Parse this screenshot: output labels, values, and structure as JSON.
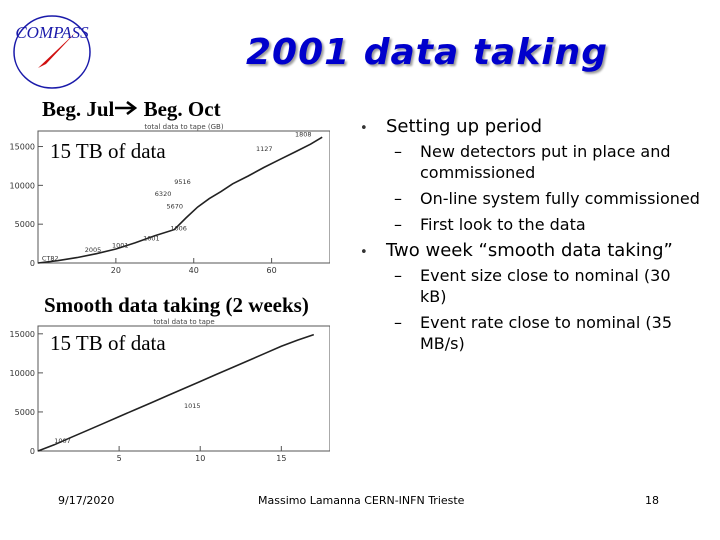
{
  "slide": {
    "title": "2001 data taking",
    "logo_text": "COMPASS",
    "label_period_from": "Beg. Jul",
    "label_period_to": " Beg. Oct",
    "label_smooth": "Smooth data taking (2 weeks)",
    "tb_label_1": "15 TB of data",
    "tb_label_2": "15 TB of data"
  },
  "bullets": [
    {
      "text": "Setting up period",
      "sub": [
        "New detectors put in place and commissioned",
        "On-line system fully commissioned",
        "First look to the data"
      ]
    },
    {
      "text": "Two week “smooth data taking”",
      "sub": [
        "Event size close to nominal (30 kB)",
        "Event rate close to nominal (35 MB/s)"
      ]
    }
  ],
  "footer": {
    "date": "9/17/2020",
    "author": "Massimo Lamanna CERN-INFN Trieste",
    "page": "18"
  },
  "chart_data": [
    {
      "type": "line",
      "title": "total data to tape (GB)",
      "xlim": [
        0,
        75
      ],
      "ylim": [
        0,
        17000
      ],
      "x_ticks": [
        "20",
        "40",
        "60"
      ],
      "y_ticks": [
        "0",
        "5000",
        "10000",
        "15000"
      ],
      "x": [
        0,
        5,
        10,
        15,
        20,
        25,
        30,
        35,
        38,
        41,
        44,
        47,
        50,
        54,
        58,
        62,
        66,
        70,
        73
      ],
      "y": [
        0,
        300,
        700,
        1200,
        1800,
        2600,
        3500,
        4300,
        5800,
        7200,
        8300,
        9200,
        10200,
        11200,
        12300,
        13300,
        14300,
        15300,
        16200
      ],
      "annotations": [
        "CT82",
        "2005",
        "1001",
        "1001",
        "1006",
        "5670",
        "6320",
        "9516",
        "1127",
        "1808"
      ]
    },
    {
      "type": "line",
      "title": "total data to tape",
      "xlim": [
        0,
        18
      ],
      "ylim": [
        0,
        16000
      ],
      "x_ticks": [
        "5",
        "10",
        "15"
      ],
      "y_ticks": [
        "0",
        "5000",
        "10000",
        "15000"
      ],
      "x": [
        0,
        1,
        2,
        3,
        4,
        5,
        6,
        7,
        8,
        9,
        10,
        11,
        12,
        13,
        14,
        15,
        16,
        17
      ],
      "y": [
        0,
        800,
        1700,
        2600,
        3500,
        4400,
        5300,
        6200,
        7100,
        8000,
        8900,
        9800,
        10700,
        11600,
        12500,
        13400,
        14200,
        14900
      ],
      "annotations": [
        "1007",
        "1015"
      ]
    }
  ]
}
